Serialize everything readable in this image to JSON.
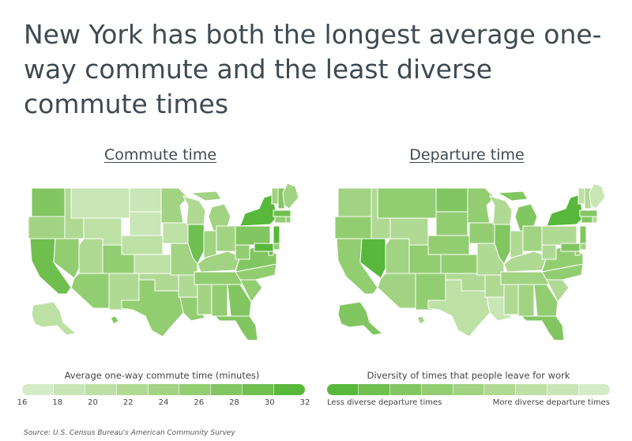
{
  "title": "New York has both the longest average one-way commute and the least diverse commute times",
  "source": "Source: U.S. Census Bureau's American Community Survey",
  "colors": {
    "scale": [
      "#d6ecc8",
      "#c9e6b6",
      "#bde0a5",
      "#b0da94",
      "#a2d383",
      "#93cd72",
      "#82c661",
      "#6fbf4f",
      "#58b83b"
    ],
    "border": "#ffffff"
  },
  "panels": [
    {
      "title": "Commute time",
      "legend_title": "Average one-way commute time (minutes)",
      "ticks": [
        "16",
        "18",
        "20",
        "22",
        "24",
        "26",
        "28",
        "30",
        "32"
      ]
    },
    {
      "title": "Departure time",
      "legend_title": "Diversity of times that people leave for work",
      "left_label": "Less diverse departure times",
      "right_label": "More diverse departure times"
    }
  ],
  "chart_data": [
    {
      "type": "choropleth",
      "title": "Commute time",
      "legend": "Average one-way commute time (minutes)",
      "scale_range": [
        16,
        32
      ],
      "highlight": "NY",
      "states": {
        "WA": 28,
        "OR": 23,
        "CA": 30,
        "NV": 25,
        "ID": 21,
        "MT": 18,
        "WY": 19,
        "UT": 22,
        "AZ": 25,
        "CO": 26,
        "NM": 22,
        "ND": 17,
        "SD": 17,
        "NE": 19,
        "KS": 19,
        "OK": 22,
        "TX": 26,
        "MN": 23,
        "IA": 19,
        "MO": 24,
        "AR": 22,
        "LA": 25,
        "WI": 22,
        "IL": 29,
        "MI": 24,
        "IN": 24,
        "OH": 24,
        "KY": 23,
        "TN": 25,
        "MS": 24,
        "AL": 25,
        "GA": 28,
        "FL": 28,
        "SC": 25,
        "NC": 25,
        "VA": 28,
        "WV": 26,
        "PA": 27,
        "NY": 33,
        "VT": 23,
        "NH": 27,
        "ME": 24,
        "MA": 30,
        "RI": 25,
        "CT": 26,
        "NJ": 31,
        "DE": 26,
        "MD": 32,
        "DC": 30,
        "AK": 19,
        "HI": 27
      }
    },
    {
      "type": "choropleth",
      "title": "Departure time",
      "legend": "Diversity of times that people leave for work",
      "scale": [
        "Less diverse departure times",
        "More diverse departure times"
      ],
      "highlight": [
        "NY",
        "NV"
      ],
      "states": {
        "WA": 5,
        "OR": 4,
        "CA": 4,
        "NV": 1,
        "ID": 6,
        "MT": 4,
        "WY": 6,
        "UT": 5,
        "AZ": 5,
        "CO": 4,
        "NM": 4,
        "ND": 3,
        "SD": 4,
        "NE": 4,
        "KS": 4,
        "OK": 6,
        "TX": 7,
        "MN": 4,
        "IA": 4,
        "MO": 6,
        "AR": 6,
        "LA": 8,
        "WI": 6,
        "IL": 3,
        "MI": 3,
        "IN": 6,
        "OH": 5,
        "KY": 6,
        "TN": 5,
        "MS": 6,
        "AL": 5,
        "GA": 4,
        "FL": 3,
        "SC": 6,
        "NC": 4,
        "VA": 4,
        "WV": 6,
        "PA": 6,
        "NY": 1,
        "VT": 7,
        "NH": 6,
        "ME": 8,
        "MA": 3,
        "RI": 6,
        "CT": 3,
        "NJ": 3,
        "DE": 5,
        "MD": 3,
        "DC": 4,
        "AK": 3,
        "HI": 5
      }
    }
  ]
}
